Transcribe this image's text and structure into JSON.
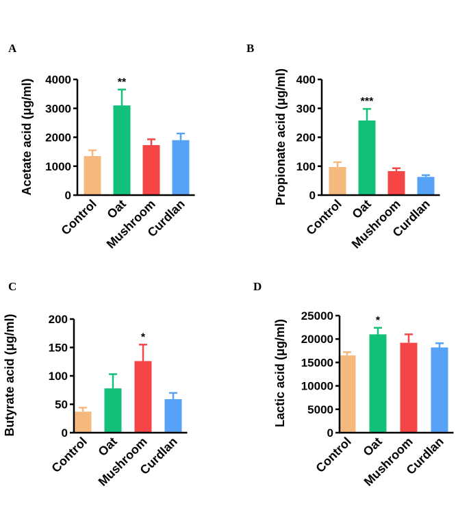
{
  "chart_data": [
    {
      "panel": "A",
      "type": "bar",
      "categories": [
        "Control",
        "Oat",
        "Mushroom",
        "Curdlan"
      ],
      "values": [
        1350,
        3100,
        1730,
        1900
      ],
      "errors": [
        200,
        550,
        200,
        230
      ],
      "significance": [
        "",
        "**",
        "",
        ""
      ],
      "ylabel": "Acetate acid (μg/ml)",
      "ylim": [
        0,
        4000
      ],
      "yticks": [
        0,
        1000,
        2000,
        3000,
        4000
      ],
      "colors": [
        "#f5b97e",
        "#13c07a",
        "#f44646",
        "#55a2f7"
      ]
    },
    {
      "panel": "B",
      "type": "bar",
      "categories": [
        "Control",
        "Oat",
        "Mushroom",
        "Curdlan"
      ],
      "values": [
        97,
        258,
        83,
        63
      ],
      "errors": [
        17,
        40,
        10,
        6
      ],
      "significance": [
        "",
        "***",
        "",
        ""
      ],
      "ylabel": "Propionate acid (μg/ml)",
      "ylim": [
        0,
        400
      ],
      "yticks": [
        0,
        100,
        200,
        300,
        400
      ],
      "colors": [
        "#f5b97e",
        "#13c07a",
        "#f44646",
        "#55a2f7"
      ]
    },
    {
      "panel": "C",
      "type": "bar",
      "categories": [
        "Control",
        "Oat",
        "Mushroom",
        "Curdlan"
      ],
      "values": [
        37,
        78,
        126,
        59
      ],
      "errors": [
        7,
        25,
        29,
        11
      ],
      "significance": [
        "",
        "",
        "*",
        ""
      ],
      "ylabel": "Butyrate acid  (μg/ml)",
      "ylim": [
        0,
        200
      ],
      "yticks": [
        0,
        50,
        100,
        150,
        200
      ],
      "colors": [
        "#f5b97e",
        "#13c07a",
        "#f44646",
        "#55a2f7"
      ]
    },
    {
      "panel": "D",
      "type": "bar",
      "categories": [
        "Control",
        "Oat",
        "Mushroom",
        "Curdlan"
      ],
      "values": [
        16500,
        21000,
        19200,
        18200
      ],
      "errors": [
        700,
        1400,
        1800,
        900
      ],
      "significance": [
        "",
        "*",
        "",
        ""
      ],
      "ylabel": "Lactic  acid (μg/ml)",
      "ylim": [
        0,
        25000
      ],
      "yticks": [
        0,
        5000,
        10000,
        15000,
        20000,
        25000
      ],
      "colors": [
        "#f5b97e",
        "#13c07a",
        "#f44646",
        "#55a2f7"
      ]
    }
  ]
}
